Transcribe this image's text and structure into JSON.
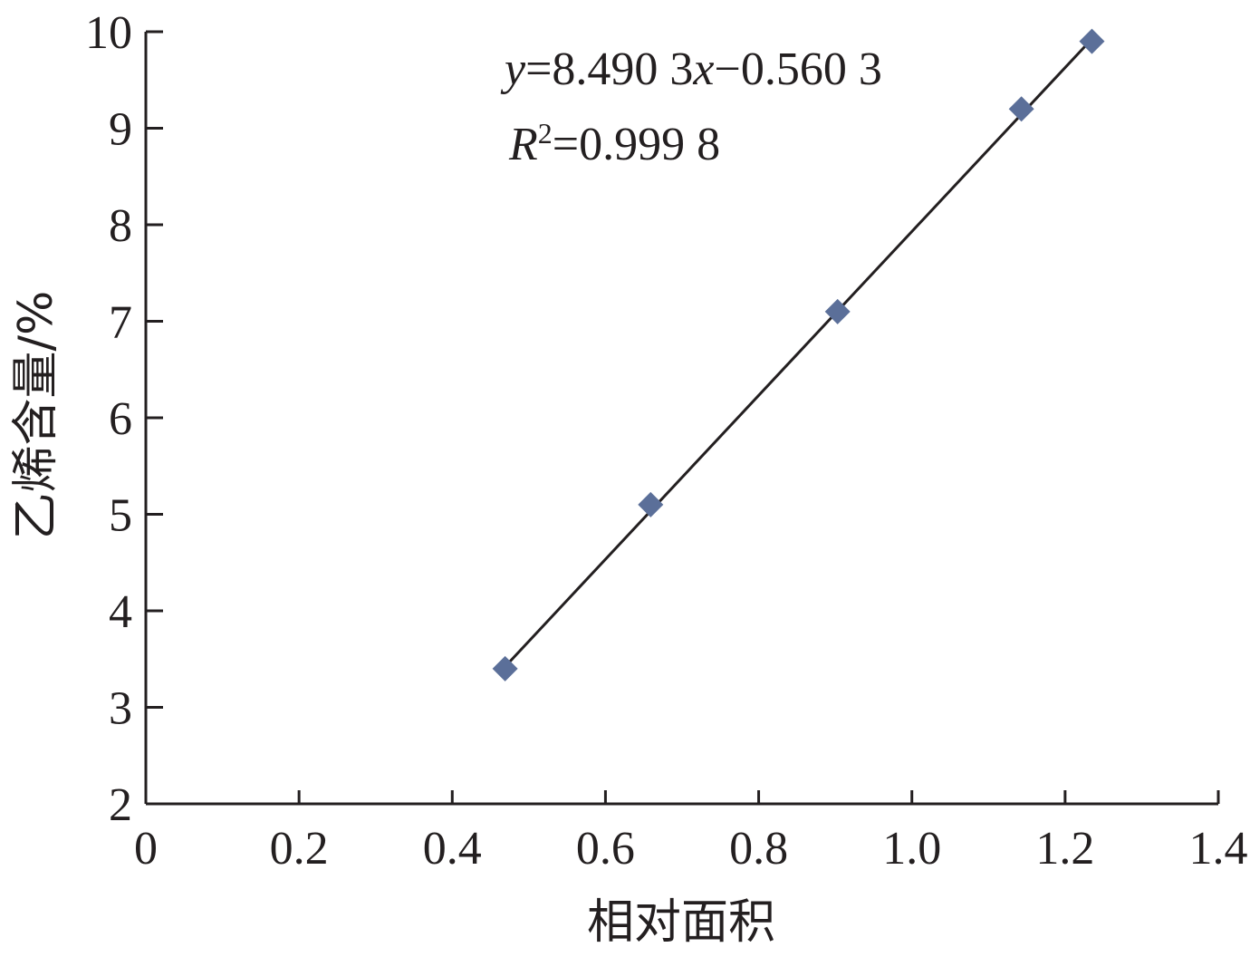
{
  "chart_data": {
    "type": "scatter",
    "xlabel": "相对面积",
    "ylabel": "乙烯含量/%",
    "xlim": [
      0,
      1.4
    ],
    "ylim": [
      2,
      10
    ],
    "x_ticks": [
      "0",
      "0.2",
      "0.4",
      "0.6",
      "0.8",
      "1.0",
      "1.2",
      "1.4"
    ],
    "y_ticks": [
      "2",
      "3",
      "4",
      "5",
      "6",
      "7",
      "8",
      "9",
      "10"
    ],
    "grid": false,
    "series": [
      {
        "points": [
          {
            "x": 0.469,
            "y": 3.4
          },
          {
            "x": 0.659,
            "y": 5.1
          },
          {
            "x": 0.903,
            "y": 7.1
          },
          {
            "x": 1.143,
            "y": 9.2
          },
          {
            "x": 1.235,
            "y": 9.9
          }
        ],
        "marker": "diamond",
        "color": "#5b6f99"
      }
    ],
    "trendline": {
      "slope": 8.4903,
      "intercept": -0.5603,
      "x_range": [
        0.469,
        1.235
      ],
      "color": "#231f20"
    },
    "annotations": {
      "equation": {
        "y_var": "y",
        "eq1": "=8.490 3",
        "x_var": "x",
        "eq2": "−0.560 3"
      },
      "r_squared": {
        "r_var": "R",
        "sup": "2",
        "value": "=0.999 8"
      }
    }
  }
}
